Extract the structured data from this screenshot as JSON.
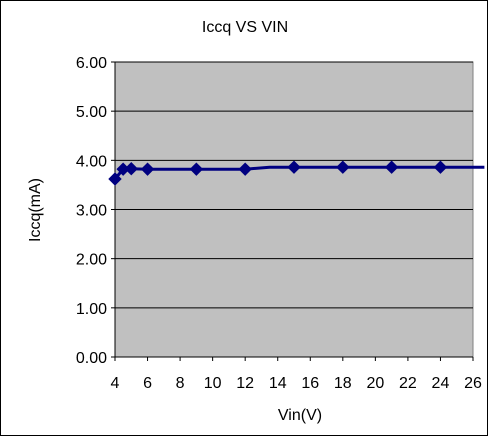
{
  "chart_data": {
    "type": "line",
    "title": "Iccq VS VIN",
    "xlabel": "Vin(V)",
    "ylabel": "Iccq(mA)",
    "xlim": [
      4,
      26
    ],
    "ylim": [
      0,
      6
    ],
    "x_ticks": [
      "4",
      "6",
      "8",
      "10",
      "12",
      "14",
      "16",
      "18",
      "20",
      "22",
      "24",
      "26"
    ],
    "y_ticks": [
      "0.00",
      "1.00",
      "2.00",
      "3.00",
      "4.00",
      "5.00",
      "6.00"
    ],
    "grid": true,
    "series": [
      {
        "color": "#000080",
        "marker": "diamond",
        "x": [
          4,
          4.5,
          5,
          6,
          9,
          12,
          15,
          18,
          21,
          24
        ],
        "y": [
          3.62,
          3.82,
          3.83,
          3.82,
          3.82,
          3.82,
          3.86,
          3.86,
          3.86,
          3.86
        ]
      }
    ],
    "trend_line": {
      "color": "#000080",
      "x": [
        4,
        4.5,
        5,
        6,
        9,
        12,
        13.5,
        15,
        18,
        21,
        24,
        26.7
      ],
      "y": [
        3.62,
        3.82,
        3.83,
        3.82,
        3.82,
        3.82,
        3.86,
        3.86,
        3.86,
        3.86,
        3.86,
        3.86
      ]
    },
    "colors": {
      "plot_background": "#c0c0c0",
      "series": "#000080"
    }
  }
}
